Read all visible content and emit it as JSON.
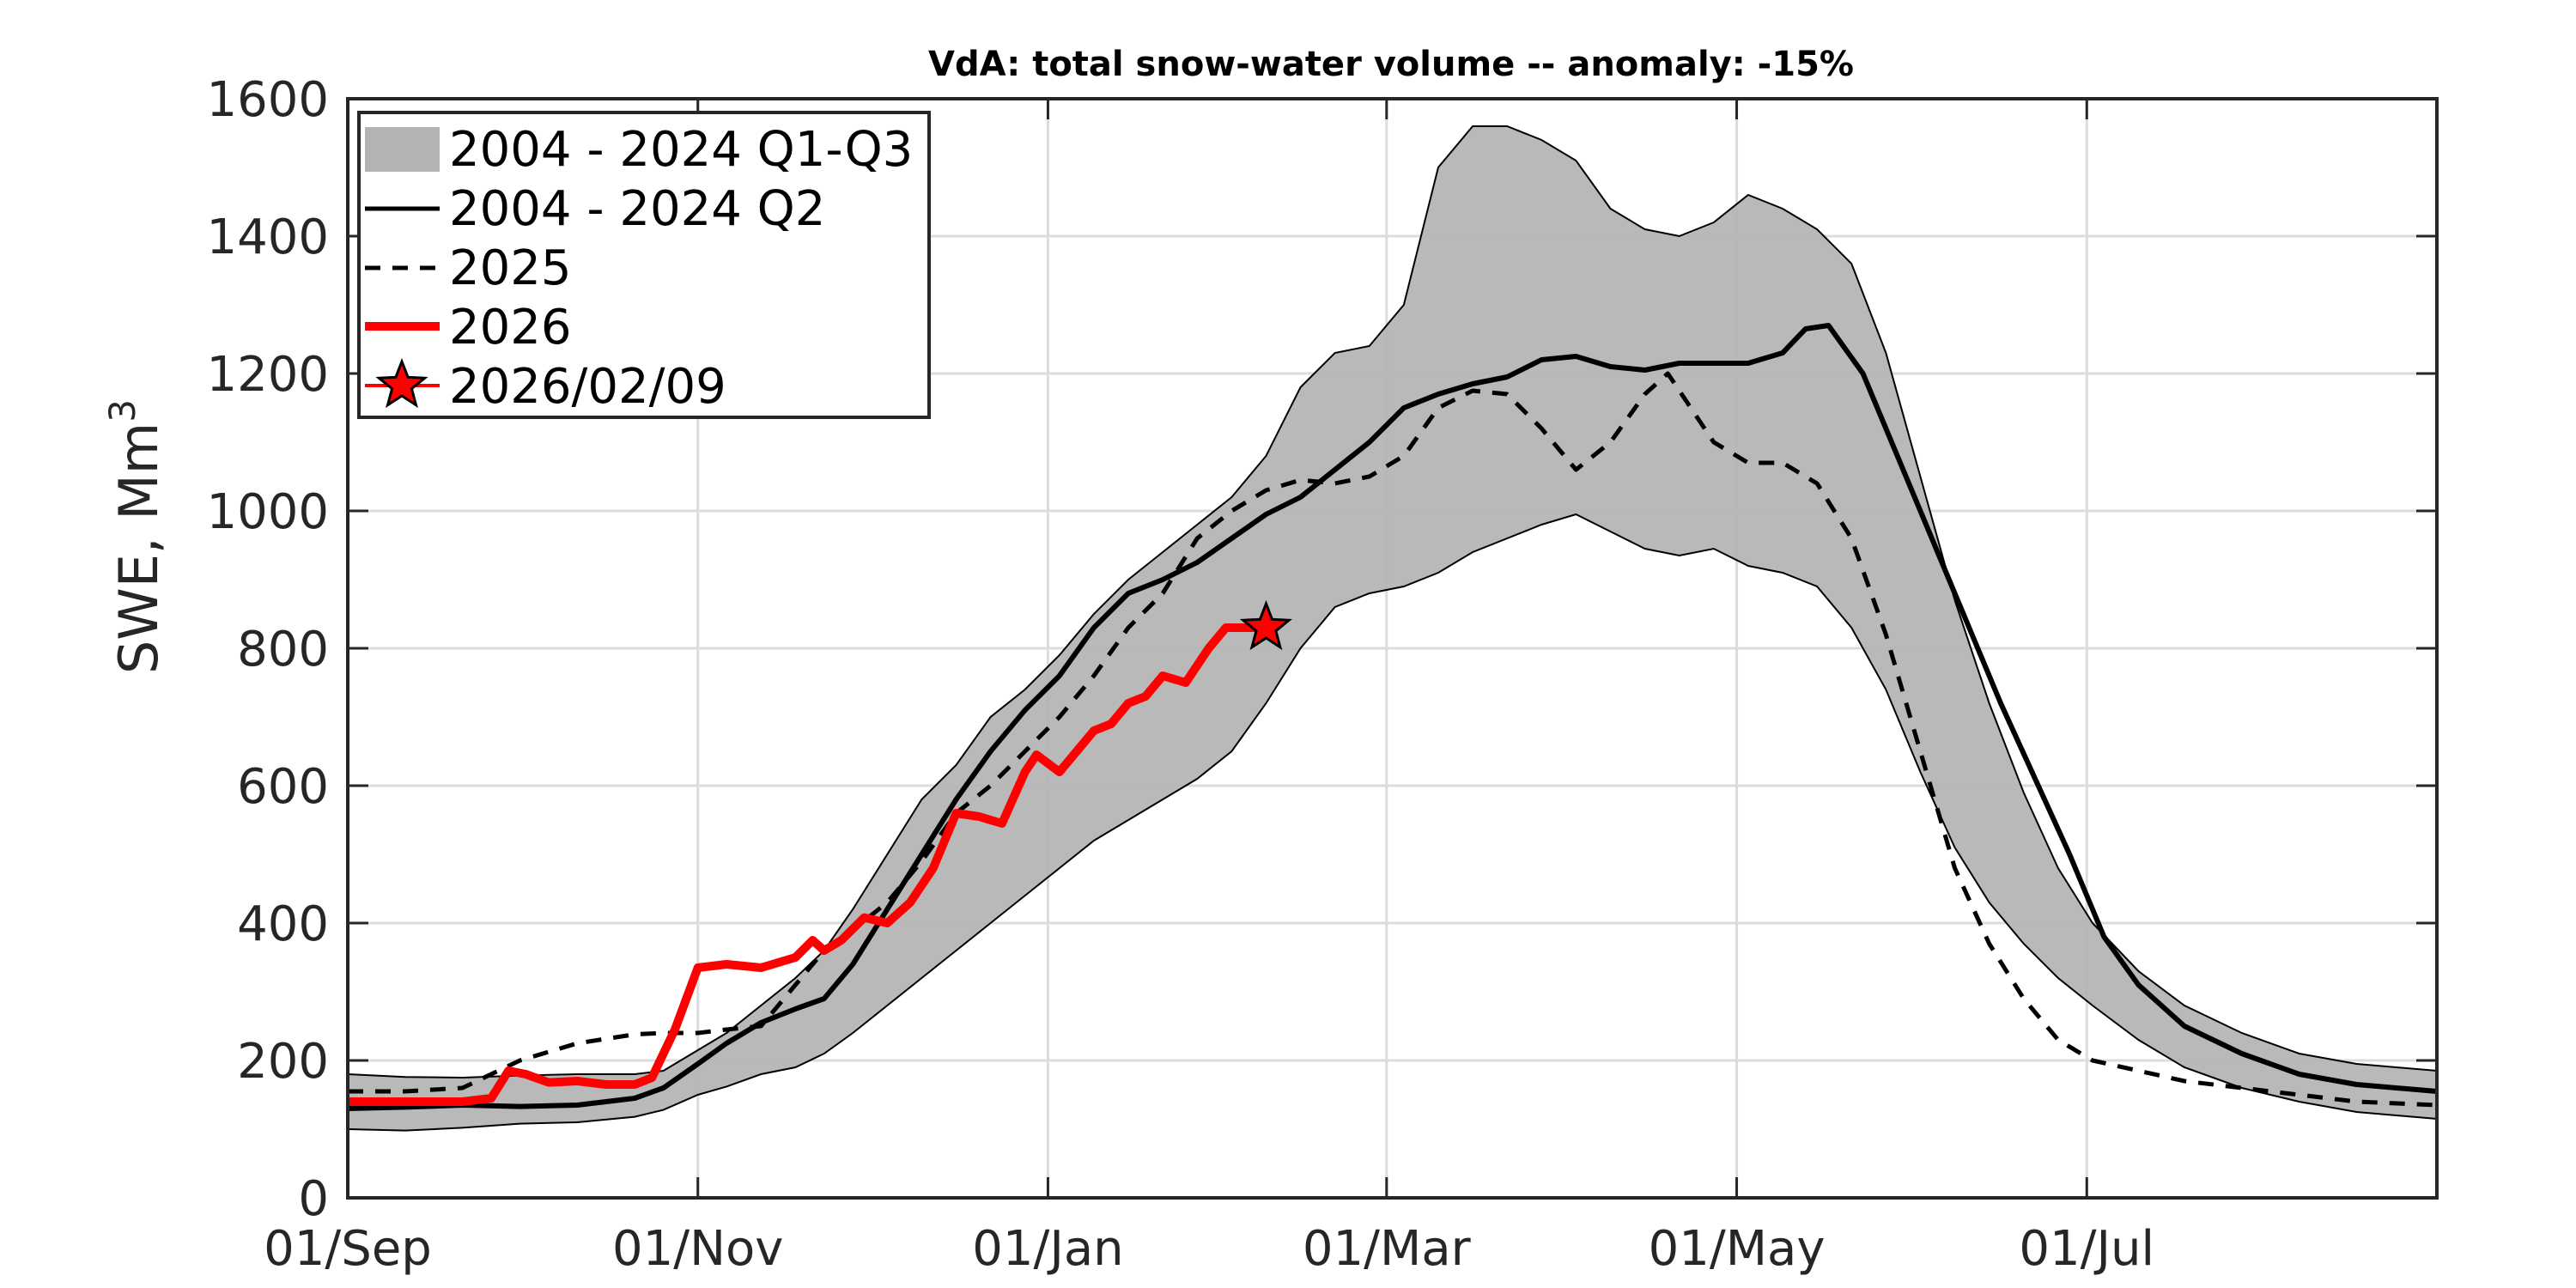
{
  "chart_data": {
    "type": "line",
    "title": "VdA: total snow-water volume -- anomaly: -15%",
    "xlabel": "",
    "ylabel": "SWE, Mm",
    "ylabel_superscript": "3",
    "x_unit": "days since 01/Sep",
    "xlim": [
      0,
      364
    ],
    "ylim": [
      0,
      1600
    ],
    "grid": true,
    "yticks": [
      0,
      200,
      400,
      600,
      800,
      1000,
      1200,
      1400,
      1600
    ],
    "ytick_labels": [
      "0",
      "200",
      "400",
      "600",
      "800",
      "1000",
      "1200",
      "1400",
      "1600"
    ],
    "xticks": [
      0,
      61,
      122,
      181,
      242,
      303
    ],
    "xtick_labels": [
      "01/Sep",
      "01/Nov",
      "01/Jan",
      "01/Mar",
      "01/May",
      "01/Jul"
    ],
    "legend_position": "top-left",
    "legend": [
      {
        "label": "2004 - 2024 Q1-Q3",
        "style": "band"
      },
      {
        "label": "2004 - 2024 Q2",
        "style": "solid"
      },
      {
        "label": "2025",
        "style": "dashed"
      },
      {
        "label": "2026",
        "style": "red-line"
      },
      {
        "label": "2026/02/09",
        "style": "star-marker"
      }
    ],
    "colors": {
      "band": "#b3b3b3",
      "median": "#000000",
      "year_2025": "#000000",
      "year_2026": "#ff0000",
      "grid": "#dcdcdc",
      "axes": "#262626"
    },
    "band_q1_q3": {
      "x": [
        0,
        10,
        20,
        30,
        40,
        50,
        55,
        61,
        66,
        72,
        78,
        83,
        88,
        94,
        100,
        106,
        112,
        118,
        124,
        130,
        136,
        142,
        148,
        154,
        160,
        166,
        172,
        178,
        184,
        190,
        196,
        202,
        208,
        214,
        220,
        226,
        232,
        238,
        244,
        250,
        256,
        262,
        268,
        274,
        280,
        286,
        292,
        298,
        304,
        312,
        320,
        330,
        340,
        350,
        364
      ],
      "q1": [
        100,
        98,
        102,
        108,
        110,
        118,
        128,
        150,
        162,
        180,
        190,
        210,
        240,
        280,
        320,
        360,
        400,
        440,
        480,
        520,
        550,
        580,
        610,
        650,
        720,
        800,
        860,
        880,
        890,
        910,
        940,
        960,
        980,
        995,
        970,
        945,
        935,
        945,
        920,
        910,
        890,
        830,
        740,
        620,
        510,
        430,
        370,
        320,
        280,
        230,
        190,
        160,
        140,
        125,
        115
      ],
      "q3": [
        180,
        176,
        175,
        178,
        180,
        180,
        185,
        215,
        240,
        280,
        320,
        360,
        420,
        500,
        580,
        630,
        700,
        740,
        790,
        850,
        900,
        940,
        980,
        1020,
        1080,
        1180,
        1230,
        1240,
        1300,
        1500,
        1560,
        1560,
        1540,
        1510,
        1440,
        1410,
        1400,
        1420,
        1460,
        1440,
        1410,
        1360,
        1230,
        1050,
        870,
        720,
        590,
        480,
        400,
        330,
        280,
        240,
        210,
        195,
        185
      ]
    },
    "series": [
      {
        "name": "2004 - 2024 Q2",
        "x": [
          0,
          10,
          20,
          30,
          40,
          50,
          55,
          61,
          66,
          72,
          78,
          83,
          88,
          94,
          100,
          106,
          112,
          118,
          124,
          130,
          136,
          142,
          148,
          154,
          160,
          166,
          172,
          178,
          184,
          190,
          196,
          202,
          208,
          214,
          220,
          226,
          232,
          238,
          244,
          250,
          254,
          258,
          264,
          270,
          276,
          282,
          288,
          294,
          300,
          306,
          312,
          320,
          330,
          340,
          350,
          364
        ],
        "values": [
          130,
          132,
          135,
          133,
          135,
          145,
          160,
          195,
          225,
          255,
          275,
          290,
          340,
          420,
          500,
          580,
          650,
          710,
          760,
          830,
          880,
          900,
          925,
          960,
          995,
          1020,
          1060,
          1100,
          1150,
          1170,
          1185,
          1195,
          1220,
          1225,
          1210,
          1205,
          1215,
          1215,
          1215,
          1230,
          1265,
          1270,
          1200,
          1080,
          960,
          840,
          720,
          610,
          500,
          380,
          310,
          250,
          210,
          180,
          165,
          155
        ]
      },
      {
        "name": "2025",
        "x": [
          0,
          10,
          20,
          30,
          40,
          50,
          55,
          61,
          66,
          72,
          78,
          83,
          88,
          94,
          100,
          106,
          112,
          118,
          124,
          130,
          136,
          142,
          148,
          154,
          160,
          166,
          172,
          178,
          184,
          190,
          196,
          202,
          208,
          214,
          220,
          226,
          230,
          234,
          238,
          244,
          250,
          256,
          262,
          268,
          274,
          280,
          286,
          292,
          298,
          304,
          312,
          320,
          330,
          340,
          350,
          364
        ],
        "values": [
          155,
          155,
          160,
          200,
          225,
          238,
          240,
          240,
          245,
          250,
          310,
          360,
          390,
          430,
          490,
          560,
          600,
          650,
          700,
          760,
          830,
          880,
          960,
          1000,
          1030,
          1045,
          1040,
          1050,
          1080,
          1150,
          1175,
          1170,
          1120,
          1060,
          1100,
          1170,
          1200,
          1150,
          1100,
          1070,
          1070,
          1040,
          960,
          820,
          650,
          480,
          370,
          290,
          230,
          200,
          185,
          170,
          160,
          150,
          140,
          135
        ]
      },
      {
        "name": "2026",
        "x": [
          0,
          5,
          10,
          15,
          20,
          25,
          28,
          31,
          35,
          40,
          45,
          50,
          53,
          57,
          61,
          66,
          72,
          78,
          81,
          83,
          86,
          90,
          94,
          98,
          102,
          106,
          110,
          114,
          118,
          120,
          124,
          128,
          130,
          133,
          136,
          139,
          142,
          146,
          150,
          153,
          156,
          160
        ],
        "values": [
          140,
          140,
          140,
          140,
          140,
          145,
          185,
          180,
          168,
          170,
          165,
          165,
          175,
          245,
          335,
          340,
          335,
          350,
          375,
          360,
          375,
          408,
          400,
          430,
          480,
          560,
          555,
          545,
          620,
          645,
          620,
          660,
          680,
          690,
          720,
          730,
          760,
          750,
          800,
          830,
          830,
          830
        ]
      }
    ],
    "marker": {
      "label": "2026/02/09",
      "x": 160,
      "value": 830,
      "shape": "star",
      "color": "#ff0000"
    }
  }
}
